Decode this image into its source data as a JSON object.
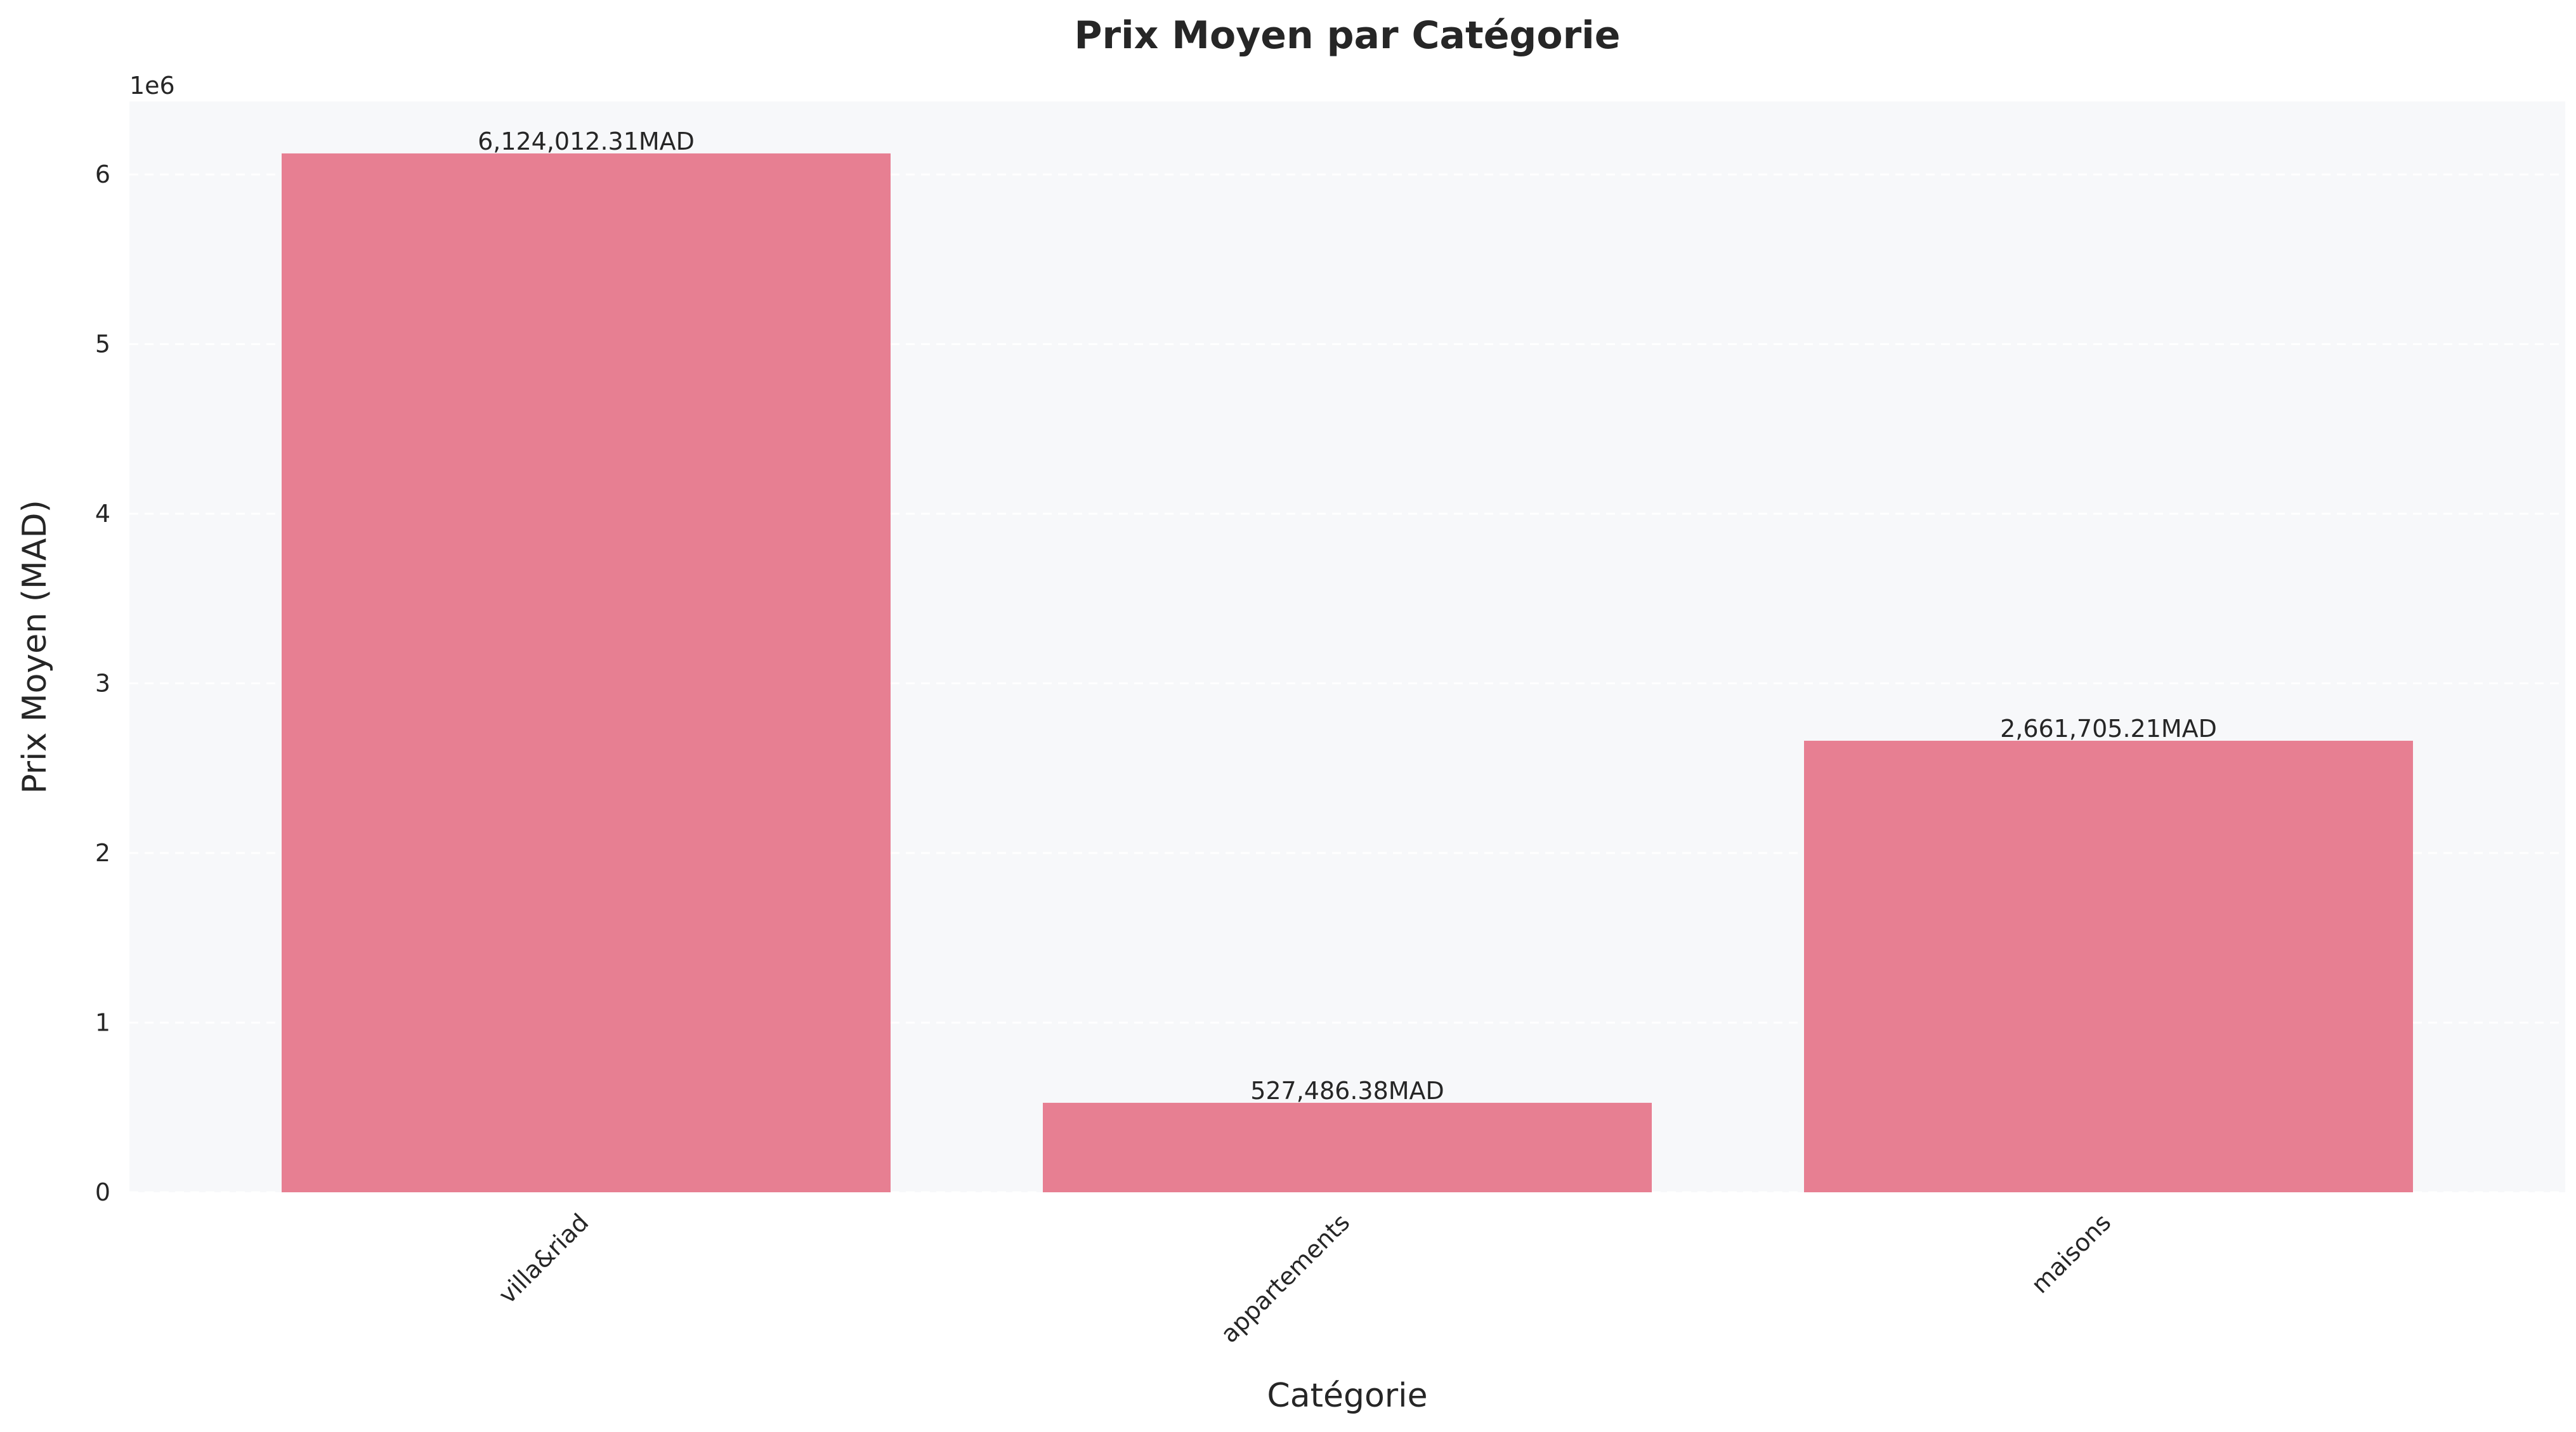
{
  "chart_data": {
    "type": "bar",
    "title": "Prix Moyen par Catégorie",
    "xlabel": "Catégorie",
    "ylabel": "Prix Moyen (MAD)",
    "offset_label": "1e6",
    "categories": [
      "villa&riad",
      "appartements",
      "maisons"
    ],
    "values": [
      6124012.31,
      527486.38,
      2661705.21
    ],
    "value_labels": [
      "6,124,012.31MAD",
      "527,486.38MAD",
      "2,661,705.21MAD"
    ],
    "y_tick_labels": [
      "0",
      "1",
      "2",
      "3",
      "4",
      "5",
      "6"
    ],
    "y_tick_values": [
      0,
      1000000,
      2000000,
      3000000,
      4000000,
      5000000,
      6000000
    ],
    "ylim": [
      0,
      6430212.93
    ],
    "grid": true,
    "x_tick_rotation_deg": 45
  },
  "colors": {
    "bar": "#e77f92",
    "plot_background": "#f7f8fa",
    "grid": "#ffffff",
    "text": "#262626"
  }
}
